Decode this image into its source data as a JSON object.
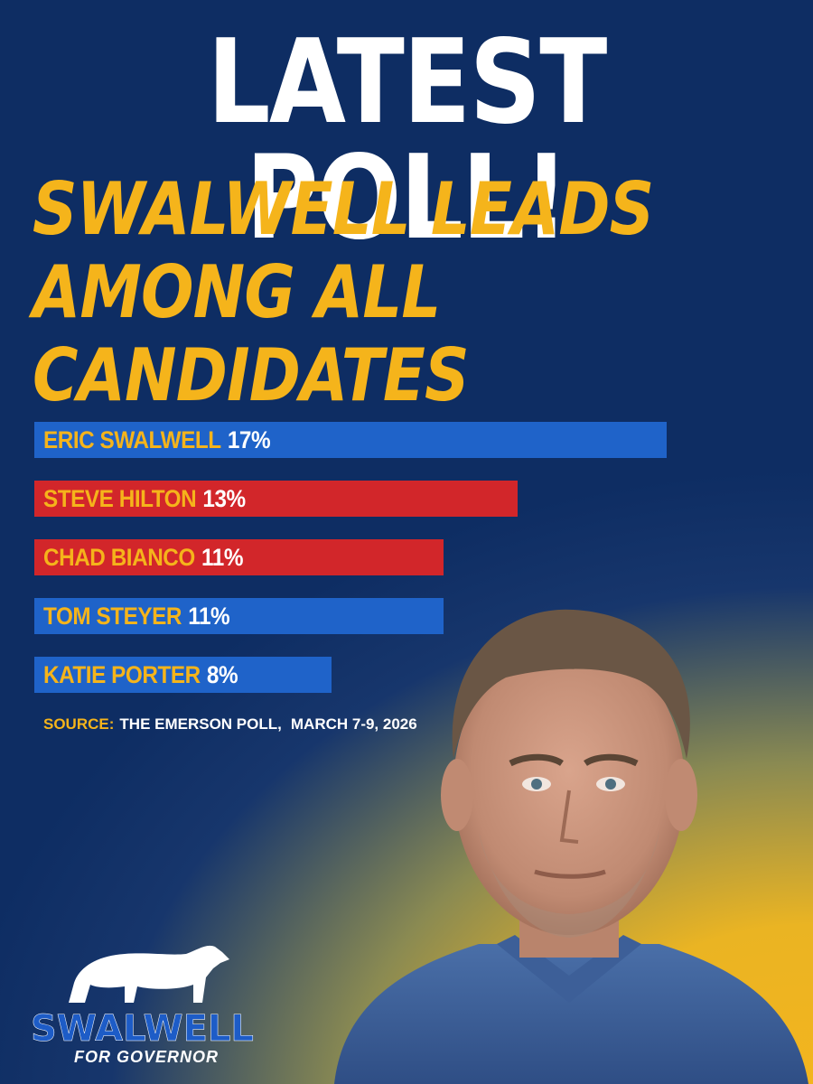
{
  "headline": "LATEST POLL!",
  "subheadline_lines": [
    "SWALWELL LEADS",
    "AMONG ALL",
    "CANDIDATES"
  ],
  "chart_data": {
    "type": "bar",
    "orientation": "horizontal",
    "categories": [
      "ERIC SWALWELL",
      "STEVE HILTON",
      "CHAD BIANCO",
      "TOM STEYER",
      "KATIE PORTER"
    ],
    "values": [
      17,
      13,
      11,
      11,
      8
    ],
    "value_labels": [
      "17%",
      "13%",
      "11%",
      "11%",
      "8%"
    ],
    "bar_colors": [
      "#1f63c9",
      "#d2262a",
      "#d2262a",
      "#1f63c9",
      "#1f63c9"
    ],
    "xlim": [
      0,
      17
    ],
    "grid": false
  },
  "source": {
    "label": "SOURCE:",
    "text": "THE EMERSON POLL,",
    "date": "MARCH 7-9, 2026"
  },
  "logo": {
    "word": "SWALWELL",
    "sub": "FOR GOVERNOR"
  },
  "colors": {
    "navy": "#0e2d63",
    "gold": "#f5b41b",
    "blue": "#1f63c9",
    "red": "#d2262a",
    "white": "#ffffff"
  }
}
